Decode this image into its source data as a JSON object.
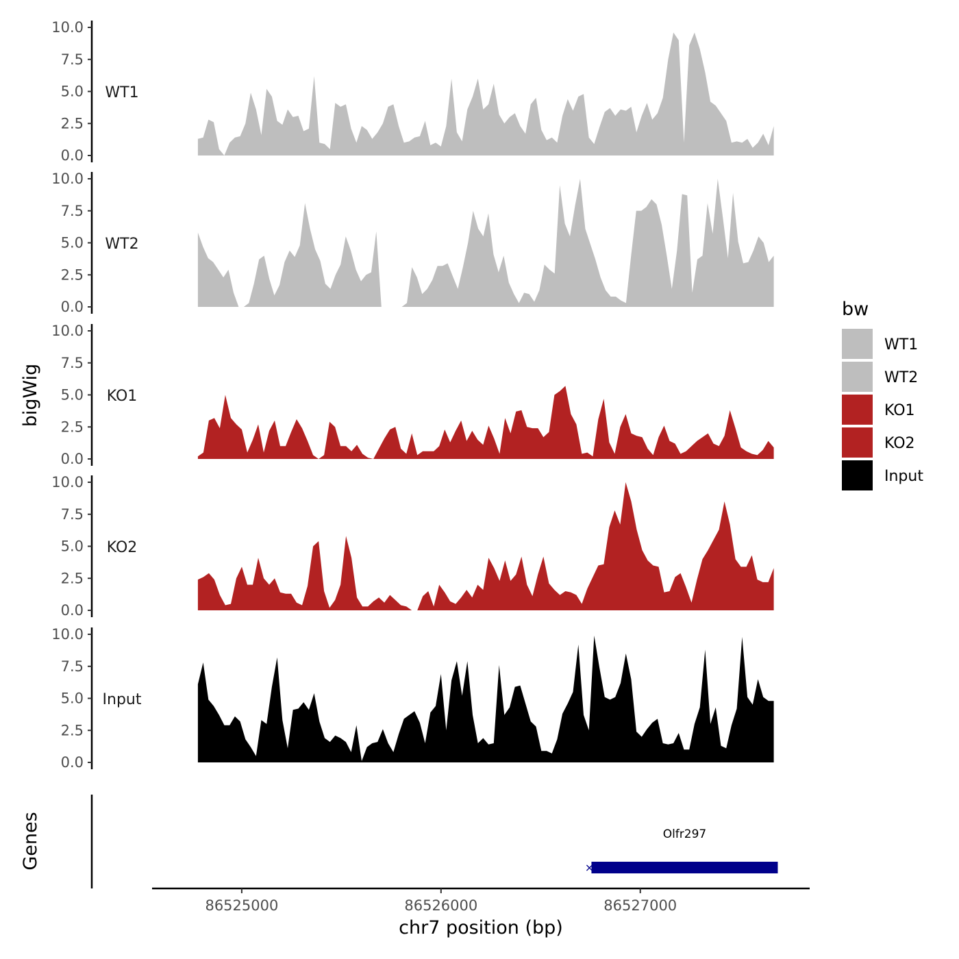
{
  "chart_data": {
    "type": "area",
    "ylabel": "bigWig",
    "xlabel": "chr7 position (bp)",
    "xlim": [
      86524550,
      86527850
    ],
    "data_range": [
      86524780,
      86527670
    ],
    "ylim": [
      0,
      10
    ],
    "y_ticks": [
      0,
      2.5,
      5,
      7.5,
      10
    ],
    "y_tick_labels": [
      "0.0",
      "2.5",
      "5.0",
      "7.5",
      "10.0"
    ],
    "x_ticks": [
      86525000,
      86526000,
      86527000
    ],
    "x_tick_labels": [
      "86525000",
      "86526000",
      "86527000"
    ],
    "legend": {
      "title": "bw",
      "position": "right",
      "entries": [
        {
          "label": "WT1",
          "color": "#bebebe"
        },
        {
          "label": "WT2",
          "color": "#bebebe"
        },
        {
          "label": "KO1",
          "color": "#b22222"
        },
        {
          "label": "KO2",
          "color": "#b22222"
        },
        {
          "label": "Input",
          "color": "#000000"
        }
      ]
    },
    "series": [
      {
        "name": "WT1",
        "color": "#bebebe",
        "values": [
          1.3,
          1.4,
          2.8,
          2.6,
          0.5,
          0,
          1.0,
          1.4,
          1.5,
          2.5,
          4.9,
          3.6,
          1.6,
          5.2,
          4.6,
          2.7,
          2.4,
          3.6,
          3.0,
          3.1,
          1.9,
          2.1,
          6.2,
          1.0,
          0.9,
          0.5,
          4.1,
          3.8,
          4.0,
          2.1,
          1.0,
          2.3,
          2.0,
          1.3,
          1.8,
          2.5,
          3.8,
          4.0,
          2.3,
          1.0,
          1.1,
          1.4,
          1.5,
          2.7,
          0.8,
          1.0,
          0.7,
          2.3,
          6.0,
          1.8,
          1.1,
          3.6,
          4.6,
          6.0,
          3.6,
          4.0,
          5.6,
          3.2,
          2.5,
          3.0,
          3.3,
          2.3,
          1.7,
          4.0,
          4.5,
          2.0,
          1.2,
          1.4,
          1.0,
          3.1,
          4.4,
          3.5,
          4.6,
          4.8,
          1.4,
          0.9,
          2.2,
          3.4,
          3.7,
          3.1,
          3.6,
          3.5,
          3.8,
          1.8,
          3.1,
          4.1,
          2.8,
          3.3,
          4.5,
          7.5,
          9.6,
          9.0,
          1.0,
          8.6,
          9.6,
          8.3,
          6.5,
          4.2,
          3.9,
          3.3,
          2.7,
          1.0,
          1.1,
          1.0,
          1.3,
          0.6,
          1.0,
          1.7,
          0.8,
          2.3
        ]
      },
      {
        "name": "WT2",
        "color": "#bebebe",
        "values": [
          5.8,
          4.7,
          3.8,
          3.5,
          2.9,
          2.3,
          2.9,
          1.1,
          0,
          0,
          0.3,
          1.8,
          3.7,
          4.0,
          2.2,
          0.9,
          1.7,
          3.5,
          4.4,
          3.9,
          4.8,
          8.1,
          6.1,
          4.5,
          3.6,
          1.8,
          1.4,
          2.5,
          3.3,
          5.5,
          4.4,
          2.9,
          2.0,
          2.5,
          2.7,
          5.9,
          0,
          0,
          0,
          0,
          0,
          0.3,
          3.1,
          2.3,
          1.0,
          1.4,
          2.1,
          3.2,
          3.2,
          3.4,
          2.4,
          1.4,
          3.1,
          5.0,
          7.5,
          6.1,
          5.5,
          7.3,
          4.1,
          2.7,
          4.0,
          1.9,
          1.0,
          0.3,
          1.1,
          1.0,
          0.4,
          1.3,
          3.3,
          2.9,
          2.6,
          9.5,
          6.5,
          5.5,
          7.9,
          10.0,
          6.1,
          4.9,
          3.7,
          2.3,
          1.3,
          0.8,
          0.8,
          0.5,
          0.3,
          4.0,
          7.5,
          7.5,
          7.8,
          8.4,
          8.0,
          6.4,
          4.0,
          1.4,
          4.4,
          8.8,
          8.7,
          1.1,
          3.7,
          4.0,
          8.1,
          5.7,
          10.0,
          7.0,
          3.8,
          8.9,
          5.1,
          3.4,
          3.5,
          4.4,
          5.5,
          5.0,
          3.5,
          4.0
        ]
      },
      {
        "name": "KO1",
        "color": "#b22222",
        "values": [
          0.2,
          0.5,
          3.0,
          3.2,
          2.4,
          5.0,
          3.2,
          2.7,
          2.3,
          0.5,
          1.5,
          2.7,
          0.5,
          2.2,
          3.0,
          1.0,
          1.0,
          2.1,
          3.1,
          2.4,
          1.4,
          0.3,
          0,
          0.3,
          2.9,
          2.5,
          1.0,
          1.0,
          0.6,
          1.1,
          0.4,
          0.1,
          0,
          0.8,
          1.6,
          2.3,
          2.5,
          0.8,
          0.4,
          2.0,
          0.3,
          0.6,
          0.6,
          0.6,
          1.0,
          2.3,
          1.3,
          2.2,
          3.0,
          1.4,
          2.2,
          1.5,
          1.1,
          2.6,
          1.6,
          0.4,
          3.2,
          2.0,
          3.7,
          3.8,
          2.5,
          2.4,
          2.4,
          1.7,
          2.1,
          5.0,
          5.3,
          5.7,
          3.5,
          2.7,
          0.4,
          0.5,
          0.2,
          3.1,
          4.7,
          1.3,
          0.4,
          2.5,
          3.5,
          2.0,
          1.8,
          1.7,
          0.8,
          0.3,
          1.7,
          2.6,
          1.4,
          1.2,
          0.4,
          0.6,
          1.0,
          1.4,
          1.7,
          2.0,
          1.2,
          1.0,
          1.8,
          3.8,
          2.4,
          0.9,
          0.6,
          0.4,
          0.3,
          0.7,
          1.4,
          0.9
        ]
      },
      {
        "name": "KO2",
        "color": "#b22222",
        "values": [
          2.4,
          2.6,
          2.9,
          2.4,
          1.2,
          0.4,
          0.5,
          2.5,
          3.4,
          2.0,
          2.0,
          4.1,
          2.5,
          2.0,
          2.5,
          1.4,
          1.3,
          1.3,
          0.6,
          0.4,
          1.9,
          5.0,
          5.4,
          1.5,
          0.2,
          0.8,
          2.0,
          5.8,
          4.1,
          1.0,
          0.3,
          0.3,
          0.7,
          1.0,
          0.6,
          1.2,
          0.8,
          0.4,
          0.3,
          0,
          0,
          1.1,
          1.5,
          0.3,
          2.0,
          1.4,
          0.7,
          0.5,
          1.0,
          1.6,
          1.0,
          2.0,
          1.6,
          4.1,
          3.3,
          2.3,
          3.9,
          2.3,
          2.8,
          4.2,
          2.0,
          1.1,
          2.8,
          4.2,
          2.1,
          1.6,
          1.2,
          1.5,
          1.4,
          1.2,
          0.5,
          1.7,
          2.6,
          3.5,
          3.6,
          6.5,
          7.8,
          6.7,
          10.0,
          8.5,
          6.3,
          4.7,
          3.9,
          3.5,
          3.4,
          1.4,
          1.5,
          2.6,
          2.9,
          1.8,
          0.6,
          2.4,
          4.0,
          4.7,
          5.5,
          6.3,
          8.5,
          6.7,
          4.0,
          3.4,
          3.4,
          4.3,
          2.4,
          2.2,
          2.2,
          3.3
        ]
      },
      {
        "name": "Input",
        "color": "#000000",
        "values": [
          6.1,
          7.8,
          4.9,
          4.4,
          3.7,
          2.9,
          2.9,
          3.6,
          3.2,
          1.8,
          1.2,
          0.5,
          3.3,
          3.0,
          5.9,
          8.2,
          3.3,
          1.1,
          4.1,
          4.2,
          4.7,
          4.1,
          5.4,
          3.2,
          1.9,
          1.6,
          2.1,
          1.9,
          1.6,
          0.8,
          2.9,
          0.1,
          1.2,
          1.5,
          1.6,
          2.6,
          1.5,
          0.8,
          2.2,
          3.4,
          3.7,
          4.0,
          3.1,
          1.5,
          3.9,
          4.4,
          6.9,
          2.5,
          6.4,
          7.9,
          5.2,
          7.9,
          3.7,
          1.5,
          1.9,
          1.4,
          1.5,
          7.6,
          3.7,
          4.3,
          5.9,
          6.0,
          4.6,
          3.2,
          2.8,
          0.9,
          0.9,
          0.7,
          1.8,
          3.8,
          4.6,
          5.5,
          9.2,
          3.7,
          2.5,
          9.9,
          7.4,
          5.1,
          4.9,
          5.1,
          6.2,
          8.5,
          6.5,
          2.4,
          2.0,
          2.6,
          3.1,
          3.4,
          1.5,
          1.4,
          1.5,
          2.3,
          1.0,
          1.0,
          3.0,
          4.3,
          8.8,
          3.0,
          4.3,
          1.3,
          1.1,
          2.9,
          4.2,
          9.8,
          5.1,
          4.5,
          6.5,
          5.1,
          4.8,
          4.8
        ]
      }
    ],
    "genes_track": {
      "label": "Genes",
      "genes": [
        {
          "name": "Olfr297",
          "start": 86526755,
          "end": 86527690,
          "strand": "-",
          "color": "#00008b"
        }
      ]
    }
  }
}
